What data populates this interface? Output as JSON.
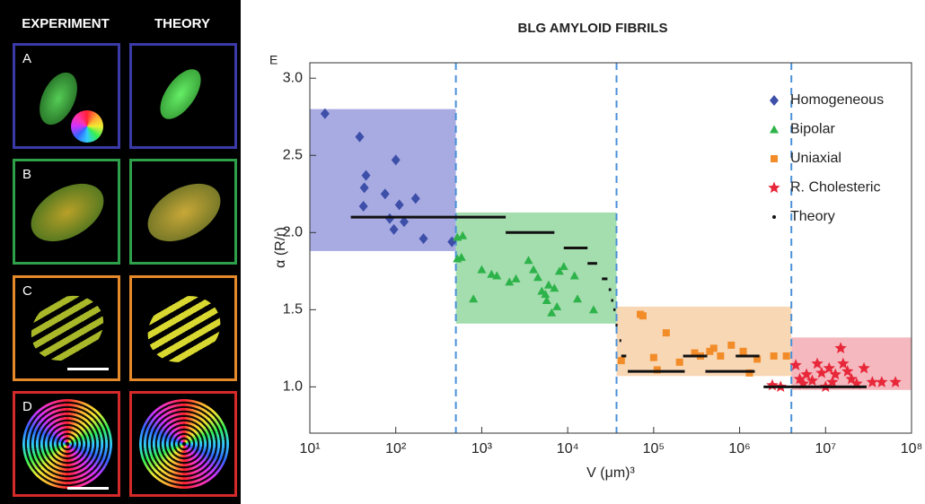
{
  "figure": {
    "headers": [
      "EXPERIMENT",
      "THEORY"
    ],
    "panel_labels": [
      "A",
      "B",
      "C",
      "D"
    ]
  },
  "chart_data": {
    "type": "scatter",
    "title": "BLG AMYLOID FIBRILS",
    "panel_label": "E",
    "x_label": "V (μm)³",
    "y_label": "α (R/r)",
    "xscale": "log",
    "xlim": [
      10,
      100000000
    ],
    "xticks": [
      {
        "value": 10,
        "label": "10¹"
      },
      {
        "value": 100,
        "label": "10²"
      },
      {
        "value": 1000,
        "label": "10³"
      },
      {
        "value": 10000,
        "label": "10⁴"
      },
      {
        "value": 100000,
        "label": "10⁵"
      },
      {
        "value": 1000000,
        "label": "10⁶"
      },
      {
        "value": 10000000,
        "label": "10⁷"
      },
      {
        "value": 100000000,
        "label": "10⁸"
      }
    ],
    "ylim": [
      0.7,
      3.1
    ],
    "yticks": [
      {
        "value": 1,
        "label": "1.0"
      },
      1.5,
      {
        "value": 2,
        "label": "2.0"
      },
      2.5,
      {
        "value": 3,
        "label": "3.0"
      }
    ],
    "boundaries": [
      500,
      37000,
      4000000
    ],
    "regions": [
      {
        "color": "#8b8fd8",
        "x": [
          10,
          500
        ],
        "y": [
          1.88,
          2.8
        ]
      },
      {
        "color": "#86d193",
        "x": [
          500,
          37000
        ],
        "y": [
          1.41,
          2.13
        ]
      },
      {
        "color": "#f6c99c",
        "x": [
          37000,
          4000000
        ],
        "y": [
          1.07,
          1.52
        ]
      },
      {
        "color": "#f0a0a8",
        "x": [
          4000000,
          100000000
        ],
        "y": [
          0.98,
          1.32
        ]
      }
    ],
    "legend": "upper right",
    "series": [
      {
        "name": "Homogeneous",
        "color": "#3d4fa8",
        "marker": "diamond",
        "x": [
          15,
          38,
          45,
          43,
          42,
          75,
          100,
          110,
          85,
          170,
          95,
          210,
          450,
          125
        ],
        "values": [
          2.77,
          2.62,
          2.37,
          2.29,
          2.17,
          2.25,
          2.47,
          2.18,
          2.09,
          2.22,
          2.02,
          1.96,
          1.94,
          2.07
        ]
      },
      {
        "name": "Bipolar",
        "color": "#2db34a",
        "marker": "triangle",
        "x": [
          520,
          600,
          520,
          580,
          800,
          1000,
          1300,
          1500,
          2100,
          2500,
          3500,
          4000,
          4500,
          5000,
          5500,
          6000,
          5700,
          7000,
          8000,
          9000,
          6500,
          12000,
          20000,
          13000,
          7500
        ],
        "values": [
          1.97,
          1.98,
          1.83,
          1.84,
          1.57,
          1.76,
          1.73,
          1.72,
          1.68,
          1.7,
          1.82,
          1.76,
          1.71,
          1.62,
          1.6,
          1.66,
          1.56,
          1.64,
          1.75,
          1.78,
          1.48,
          1.72,
          1.5,
          1.57,
          1.52
        ]
      },
      {
        "name": "Uniaxial",
        "color": "#f28c28",
        "marker": "square",
        "x": [
          70000,
          75000,
          42000,
          100000,
          140000,
          110000,
          300000,
          350000,
          450000,
          500000,
          600000,
          800000,
          1100000,
          1300000,
          1600000,
          2500000,
          3500000,
          200000
        ],
        "values": [
          1.47,
          1.46,
          1.17,
          1.19,
          1.35,
          1.11,
          1.22,
          1.2,
          1.23,
          1.25,
          1.2,
          1.27,
          1.23,
          1.09,
          1.18,
          1.2,
          1.2,
          1.16
        ]
      },
      {
        "name": "R. Cholesteric",
        "color": "#e8283a",
        "marker": "star",
        "x": [
          2400000,
          3000000,
          4500000,
          5000000,
          5500000,
          6000000,
          7000000,
          8000000,
          9000000,
          10000000,
          11000000,
          13000000,
          15000000,
          18000000,
          20000000,
          23000000,
          28000000,
          35000000,
          45000000,
          65000000,
          12000000,
          16000000
        ],
        "values": [
          1.01,
          1.0,
          1.14,
          1.05,
          1.02,
          1.08,
          1.04,
          1.15,
          1.09,
          1.0,
          1.12,
          1.08,
          1.25,
          1.1,
          1.05,
          1.02,
          1.12,
          1.03,
          1.03,
          1.03,
          1.03,
          1.15
        ]
      },
      {
        "name": "Theory",
        "color": "#111111",
        "marker": "segment",
        "x": [
          30,
          1900,
          9000,
          17000,
          25000,
          30000,
          32000,
          34000,
          36000,
          40000,
          42000,
          50000,
          220000,
          400000,
          900000,
          1900000
        ],
        "x2": [
          1900,
          7000,
          17000,
          22000,
          29000,
          32000,
          34000,
          36000,
          38000,
          42000,
          48000,
          230000,
          420000,
          1500000,
          1700000,
          30000000
        ],
        "values": [
          2.1,
          2.0,
          1.9,
          1.8,
          1.7,
          1.63,
          1.56,
          1.5,
          1.4,
          1.3,
          1.2,
          1.1,
          1.2,
          1.1,
          1.2,
          1.0
        ]
      }
    ]
  }
}
